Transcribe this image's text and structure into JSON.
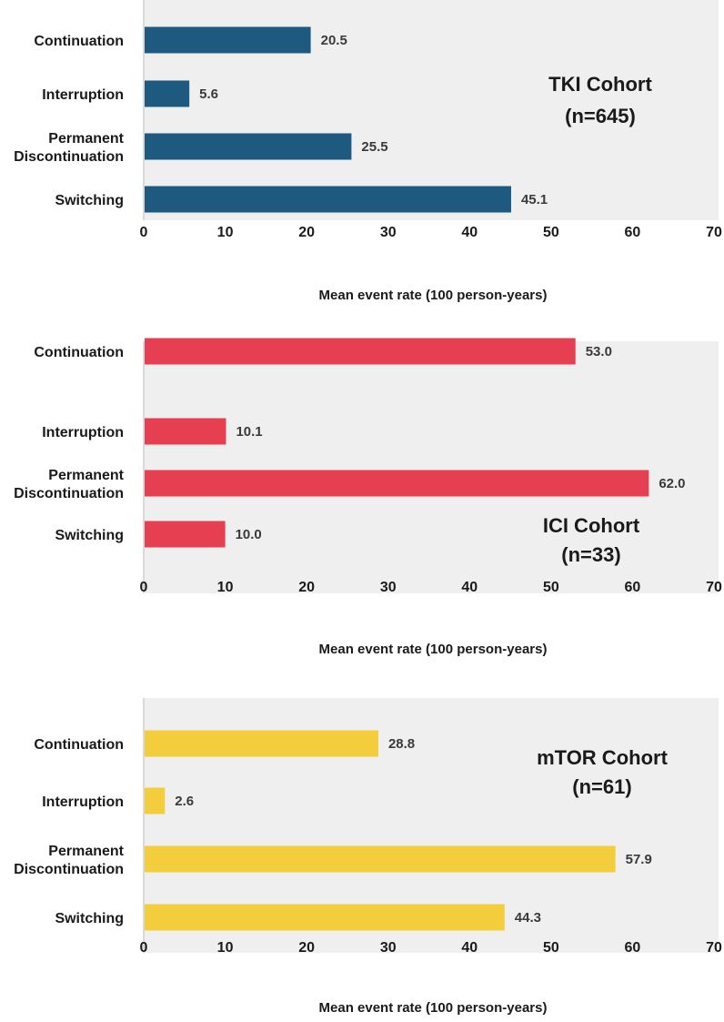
{
  "chart_data": [
    {
      "type": "bar",
      "orientation": "horizontal",
      "categories": [
        "Continuation",
        "Interruption",
        "Permanent Discontinuation",
        "Switching"
      ],
      "category_lines": [
        [
          "Continuation"
        ],
        [
          "Interruption"
        ],
        [
          "Permanent",
          "Discontinuation"
        ],
        [
          "Switching"
        ]
      ],
      "values": [
        20.5,
        5.6,
        25.5,
        45.1
      ],
      "value_labels": [
        "20.5",
        "5.6",
        "25.5",
        "45.1"
      ],
      "color": "#1e5a80",
      "xlabel": "Mean event rate (100 person-years)",
      "xlim": [
        0,
        70
      ],
      "xticks": [
        0,
        10,
        20,
        30,
        40,
        50,
        60,
        70
      ],
      "annotation": [
        "TKI Cohort",
        "(n=645)"
      ]
    },
    {
      "type": "bar",
      "orientation": "horizontal",
      "categories": [
        "Continuation",
        "Interruption",
        "Permanent Discontinuation",
        "Switching"
      ],
      "category_lines": [
        [
          "Continuation"
        ],
        [
          "Interruption"
        ],
        [
          "Permanent",
          "Discontinuation"
        ],
        [
          "Switching"
        ]
      ],
      "values": [
        53.0,
        10.1,
        62.0,
        10.0
      ],
      "value_labels": [
        "53.0",
        "10.1",
        "62.0",
        "10.0"
      ],
      "color": "#e63f52",
      "xlabel": "Mean event rate (100 person-years)",
      "xlim": [
        0,
        70
      ],
      "xticks": [
        0,
        10,
        20,
        30,
        40,
        50,
        60,
        70
      ],
      "annotation": [
        "ICI Cohort",
        "(n=33)"
      ]
    },
    {
      "type": "bar",
      "orientation": "horizontal",
      "categories": [
        "Continuation",
        "Interruption",
        "Permanent Discontinuation",
        "Switching"
      ],
      "category_lines": [
        [
          "Continuation"
        ],
        [
          "Interruption"
        ],
        [
          "Permanent",
          "Discontinuation"
        ],
        [
          "Switching"
        ]
      ],
      "values": [
        28.8,
        2.6,
        57.9,
        44.3
      ],
      "value_labels": [
        "28.8",
        "2.6",
        "57.9",
        "44.3"
      ],
      "color": "#f3cd3c",
      "xlabel": "Mean event rate (100 person-years)",
      "xlim": [
        0,
        70
      ],
      "xticks": [
        0,
        10,
        20,
        30,
        40,
        50,
        60,
        70
      ],
      "annotation": [
        "mTOR Cohort",
        "(n=61)"
      ]
    }
  ]
}
